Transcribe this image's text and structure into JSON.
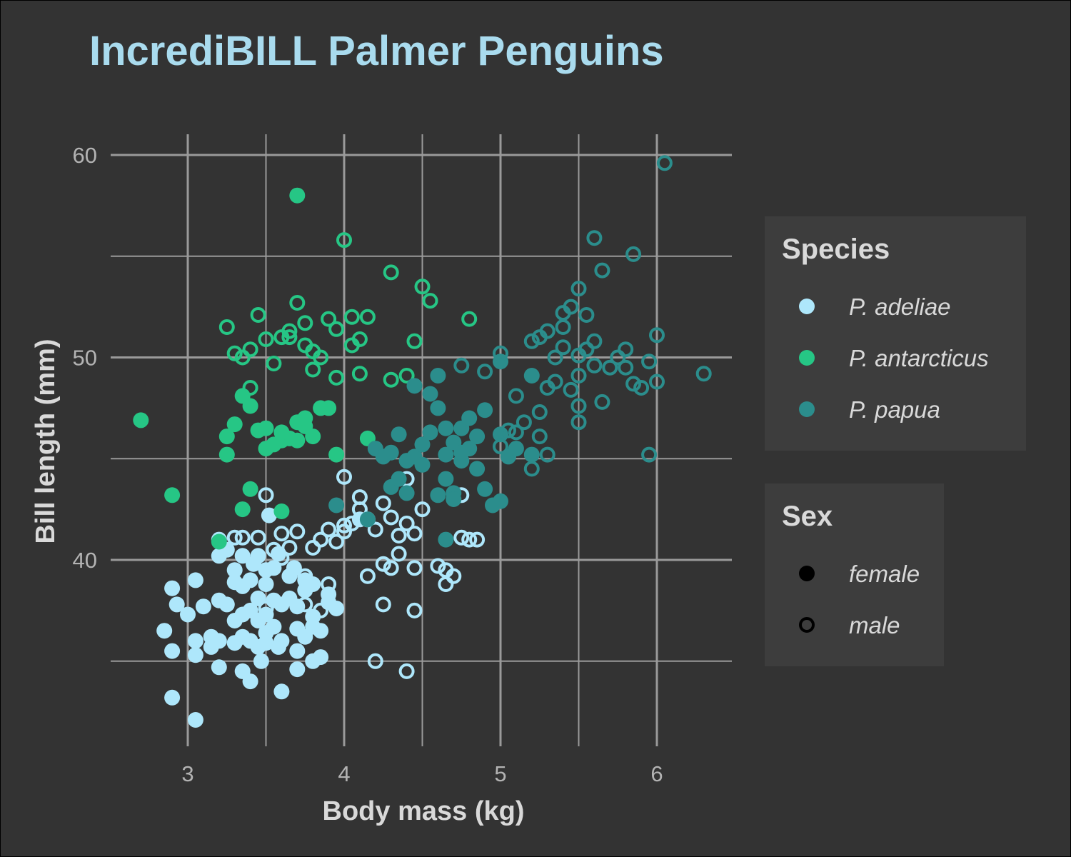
{
  "chart_data": {
    "type": "scatter",
    "title": "IncrediBILL Palmer Penguins",
    "xlabel": "Body mass (kg)",
    "ylabel": "Bill length (mm)",
    "xlim": [
      2.6,
      6.5
    ],
    "ylim": [
      31,
      62
    ],
    "xticks": [
      3,
      4,
      5,
      6
    ],
    "yticks": [
      40,
      50,
      60
    ],
    "grid": true,
    "legend_placement": "right",
    "species_legend": {
      "title": "Species",
      "items": [
        {
          "label": "P. adeliae",
          "color": "#aee7fb"
        },
        {
          "label": "P. antarcticus",
          "color": "#26c685"
        },
        {
          "label": "P. papua",
          "color": "#2b8d8c"
        }
      ]
    },
    "sex_legend": {
      "title": "Sex",
      "items": [
        {
          "label": "female",
          "shape": "filled-circle"
        },
        {
          "label": "male",
          "shape": "open-circle"
        }
      ]
    },
    "series": [
      {
        "name": "P. adeliae",
        "sex": "female",
        "color": "#aee7fb",
        "points": [
          [
            2.9,
            38.6
          ],
          [
            2.93,
            37.8
          ],
          [
            2.85,
            36.5
          ],
          [
            2.9,
            35.5
          ],
          [
            2.9,
            33.2
          ],
          [
            3.05,
            32.1
          ],
          [
            3.0,
            37.3
          ],
          [
            3.05,
            36.0
          ],
          [
            3.05,
            35.3
          ],
          [
            3.05,
            39.0
          ],
          [
            3.1,
            37.7
          ],
          [
            3.15,
            36.2
          ],
          [
            3.15,
            35.7
          ],
          [
            3.2,
            36.0
          ],
          [
            3.2,
            38.0
          ],
          [
            3.2,
            40.2
          ],
          [
            3.2,
            41.0
          ],
          [
            3.2,
            34.7
          ],
          [
            3.25,
            37.8
          ],
          [
            3.25,
            40.5
          ],
          [
            3.3,
            38.9
          ],
          [
            3.3,
            39.5
          ],
          [
            3.3,
            37.0
          ],
          [
            3.3,
            35.9
          ],
          [
            3.35,
            37.3
          ],
          [
            3.35,
            38.7
          ],
          [
            3.35,
            34.5
          ],
          [
            3.35,
            36.2
          ],
          [
            3.35,
            40.2
          ],
          [
            3.4,
            39.0
          ],
          [
            3.4,
            37.5
          ],
          [
            3.4,
            36.0
          ],
          [
            3.4,
            34.0
          ],
          [
            3.45,
            38.1
          ],
          [
            3.45,
            35.7
          ],
          [
            3.45,
            40.2
          ],
          [
            3.45,
            37.0
          ],
          [
            3.47,
            35.0
          ],
          [
            3.5,
            39.5
          ],
          [
            3.5,
            38.8
          ],
          [
            3.5,
            37.3
          ],
          [
            3.5,
            36.4
          ],
          [
            3.5,
            35.9
          ],
          [
            3.52,
            42.2
          ],
          [
            3.55,
            39.6
          ],
          [
            3.55,
            38.0
          ],
          [
            3.55,
            36.7
          ],
          [
            3.58,
            35.7
          ],
          [
            3.6,
            33.5
          ],
          [
            3.6,
            37.8
          ],
          [
            3.6,
            36.0
          ],
          [
            3.65,
            39.2
          ],
          [
            3.65,
            38.1
          ],
          [
            3.7,
            37.7
          ],
          [
            3.7,
            36.6
          ],
          [
            3.7,
            35.5
          ],
          [
            3.7,
            34.6
          ],
          [
            3.75,
            39.0
          ],
          [
            3.75,
            38.5
          ],
          [
            3.75,
            36.2
          ],
          [
            3.8,
            37.2
          ],
          [
            3.8,
            35.0
          ],
          [
            3.8,
            36.7
          ],
          [
            3.8,
            38.8
          ],
          [
            3.85,
            36.5
          ],
          [
            3.85,
            35.2
          ],
          [
            3.9,
            37.9
          ],
          [
            3.9,
            38.3
          ],
          [
            3.95,
            37.6
          ],
          [
            4.1,
            42.0
          ],
          [
            3.42,
            39.8
          ],
          [
            3.58,
            40.3
          ],
          [
            3.68,
            39.6
          ]
        ]
      },
      {
        "name": "P. adeliae",
        "sex": "male",
        "color": "#aee7fb",
        "points": [
          [
            3.3,
            41.1
          ],
          [
            3.35,
            41.1
          ],
          [
            3.45,
            41.1
          ],
          [
            3.5,
            43.2
          ],
          [
            3.55,
            40.5
          ],
          [
            3.6,
            41.3
          ],
          [
            3.65,
            40.6
          ],
          [
            3.7,
            41.4
          ],
          [
            3.75,
            39.2
          ],
          [
            3.8,
            40.6
          ],
          [
            3.85,
            41.0
          ],
          [
            3.9,
            41.5
          ],
          [
            3.95,
            40.9
          ],
          [
            4.0,
            41.4
          ],
          [
            4.0,
            41.7
          ],
          [
            4.05,
            41.8
          ],
          [
            4.1,
            43.1
          ],
          [
            4.1,
            42.5
          ],
          [
            4.15,
            42.0
          ],
          [
            4.2,
            41.5
          ],
          [
            4.25,
            42.8
          ],
          [
            4.3,
            42.1
          ],
          [
            4.35,
            41.2
          ],
          [
            4.4,
            44.0
          ],
          [
            4.4,
            41.8
          ],
          [
            4.45,
            41.3
          ],
          [
            4.5,
            42.5
          ],
          [
            4.0,
            44.1
          ],
          [
            4.15,
            39.2
          ],
          [
            4.25,
            39.8
          ],
          [
            4.3,
            39.6
          ],
          [
            4.35,
            40.3
          ],
          [
            4.45,
            39.6
          ],
          [
            4.6,
            39.7
          ],
          [
            4.65,
            39.5
          ],
          [
            4.7,
            39.2
          ],
          [
            4.75,
            41.1
          ],
          [
            4.75,
            43.2
          ],
          [
            4.85,
            41.0
          ],
          [
            4.25,
            37.8
          ],
          [
            4.45,
            37.5
          ],
          [
            4.2,
            35.0
          ],
          [
            4.4,
            34.5
          ],
          [
            3.5,
            37.6
          ],
          [
            3.9,
            38.8
          ],
          [
            3.85,
            37.5
          ],
          [
            3.75,
            37.8
          ],
          [
            3.6,
            40.1
          ],
          [
            4.65,
            38.8
          ],
          [
            4.8,
            41.0
          ]
        ]
      },
      {
        "name": "P. antarcticus",
        "sex": "female",
        "color": "#26c685",
        "points": [
          [
            2.7,
            46.9
          ],
          [
            2.9,
            43.2
          ],
          [
            3.2,
            40.9
          ],
          [
            3.25,
            45.2
          ],
          [
            3.25,
            46.1
          ],
          [
            3.3,
            46.7
          ],
          [
            3.35,
            48.1
          ],
          [
            3.35,
            42.5
          ],
          [
            3.4,
            43.5
          ],
          [
            3.4,
            47.6
          ],
          [
            3.45,
            46.4
          ],
          [
            3.5,
            46.5
          ],
          [
            3.5,
            45.5
          ],
          [
            3.55,
            45.7
          ],
          [
            3.6,
            45.9
          ],
          [
            3.6,
            42.4
          ],
          [
            3.65,
            46.0
          ],
          [
            3.7,
            46.8
          ],
          [
            3.7,
            58.0
          ],
          [
            3.75,
            46.6
          ],
          [
            3.75,
            47.0
          ],
          [
            3.8,
            46.1
          ],
          [
            3.85,
            47.5
          ],
          [
            3.9,
            47.5
          ],
          [
            3.95,
            45.2
          ],
          [
            4.15,
            46.0
          ],
          [
            3.6,
            46.3
          ],
          [
            3.7,
            45.9
          ]
        ]
      },
      {
        "name": "P. antarcticus",
        "sex": "male",
        "color": "#26c685",
        "points": [
          [
            3.25,
            51.5
          ],
          [
            3.3,
            50.2
          ],
          [
            3.4,
            50.4
          ],
          [
            3.45,
            52.1
          ],
          [
            3.5,
            50.9
          ],
          [
            3.55,
            49.7
          ],
          [
            3.6,
            51.0
          ],
          [
            3.65,
            51.3
          ],
          [
            3.7,
            52.7
          ],
          [
            3.75,
            51.7
          ],
          [
            3.75,
            50.6
          ],
          [
            3.8,
            49.4
          ],
          [
            3.85,
            50.0
          ],
          [
            3.9,
            51.9
          ],
          [
            3.95,
            51.4
          ],
          [
            4.0,
            55.8
          ],
          [
            4.05,
            52.0
          ],
          [
            4.05,
            50.6
          ],
          [
            4.1,
            49.2
          ],
          [
            4.15,
            52.0
          ],
          [
            4.3,
            54.2
          ],
          [
            4.3,
            48.9
          ],
          [
            4.4,
            49.1
          ],
          [
            4.45,
            50.8
          ],
          [
            4.5,
            53.5
          ],
          [
            4.55,
            52.8
          ],
          [
            4.8,
            51.9
          ],
          [
            3.4,
            48.5
          ],
          [
            3.65,
            51.0
          ],
          [
            3.8,
            50.3
          ],
          [
            3.35,
            50.0
          ],
          [
            3.95,
            49.0
          ],
          [
            4.1,
            50.9
          ]
        ]
      },
      {
        "name": "P. papua",
        "sex": "female",
        "color": "#2b8d8c",
        "points": [
          [
            3.95,
            42.7
          ],
          [
            4.15,
            42.0
          ],
          [
            4.2,
            45.5
          ],
          [
            4.25,
            45.1
          ],
          [
            4.3,
            43.6
          ],
          [
            4.3,
            45.3
          ],
          [
            4.35,
            44.0
          ],
          [
            4.35,
            46.2
          ],
          [
            4.4,
            43.3
          ],
          [
            4.4,
            44.9
          ],
          [
            4.45,
            45.1
          ],
          [
            4.45,
            48.6
          ],
          [
            4.5,
            45.7
          ],
          [
            4.5,
            44.7
          ],
          [
            4.55,
            46.3
          ],
          [
            4.6,
            43.2
          ],
          [
            4.6,
            47.5
          ],
          [
            4.65,
            45.2
          ],
          [
            4.65,
            46.5
          ],
          [
            4.7,
            43.3
          ],
          [
            4.7,
            45.8
          ],
          [
            4.75,
            44.9
          ],
          [
            4.75,
            46.5
          ],
          [
            4.8,
            47.0
          ],
          [
            4.8,
            45.5
          ],
          [
            4.85,
            46.1
          ],
          [
            4.85,
            44.5
          ],
          [
            4.9,
            47.4
          ],
          [
            4.9,
            43.5
          ],
          [
            4.95,
            42.7
          ],
          [
            5.0,
            46.2
          ],
          [
            5.0,
            42.9
          ],
          [
            5.0,
            49.8
          ],
          [
            5.05,
            45.1
          ],
          [
            5.1,
            45.5
          ],
          [
            5.2,
            49.1
          ],
          [
            5.2,
            45.2
          ],
          [
            4.65,
            41.0
          ],
          [
            4.7,
            43.0
          ],
          [
            4.6,
            49.1
          ],
          [
            4.55,
            48.2
          ],
          [
            4.75,
            45.3
          ],
          [
            4.65,
            44.0
          ]
        ]
      },
      {
        "name": "P. papua",
        "sex": "male",
        "color": "#2b8d8c",
        "points": [
          [
            4.75,
            49.6
          ],
          [
            4.9,
            49.3
          ],
          [
            5.0,
            50.2
          ],
          [
            5.0,
            45.6
          ],
          [
            5.05,
            46.4
          ],
          [
            5.1,
            46.3
          ],
          [
            5.1,
            48.1
          ],
          [
            5.15,
            46.8
          ],
          [
            5.2,
            50.8
          ],
          [
            5.25,
            47.3
          ],
          [
            5.25,
            51.0
          ],
          [
            5.3,
            48.5
          ],
          [
            5.3,
            51.3
          ],
          [
            5.35,
            50.0
          ],
          [
            5.35,
            48.8
          ],
          [
            5.4,
            50.5
          ],
          [
            5.4,
            52.2
          ],
          [
            5.45,
            48.4
          ],
          [
            5.45,
            52.5
          ],
          [
            5.5,
            50.1
          ],
          [
            5.5,
            53.4
          ],
          [
            5.5,
            49.1
          ],
          [
            5.55,
            52.1
          ],
          [
            5.55,
            50.4
          ],
          [
            5.6,
            55.9
          ],
          [
            5.6,
            50.8
          ],
          [
            5.65,
            54.3
          ],
          [
            5.65,
            47.8
          ],
          [
            5.7,
            49.5
          ],
          [
            5.75,
            50.0
          ],
          [
            5.8,
            50.4
          ],
          [
            5.85,
            48.7
          ],
          [
            5.85,
            55.1
          ],
          [
            5.95,
            49.8
          ],
          [
            5.95,
            45.2
          ],
          [
            6.0,
            51.1
          ],
          [
            6.0,
            48.8
          ],
          [
            6.05,
            59.6
          ],
          [
            6.3,
            49.2
          ],
          [
            5.5,
            46.8
          ],
          [
            5.3,
            45.2
          ],
          [
            5.25,
            46.1
          ],
          [
            5.2,
            44.5
          ],
          [
            5.5,
            47.6
          ],
          [
            5.6,
            49.6
          ],
          [
            5.8,
            49.5
          ],
          [
            5.9,
            48.5
          ],
          [
            5.4,
            51.5
          ]
        ]
      }
    ]
  }
}
